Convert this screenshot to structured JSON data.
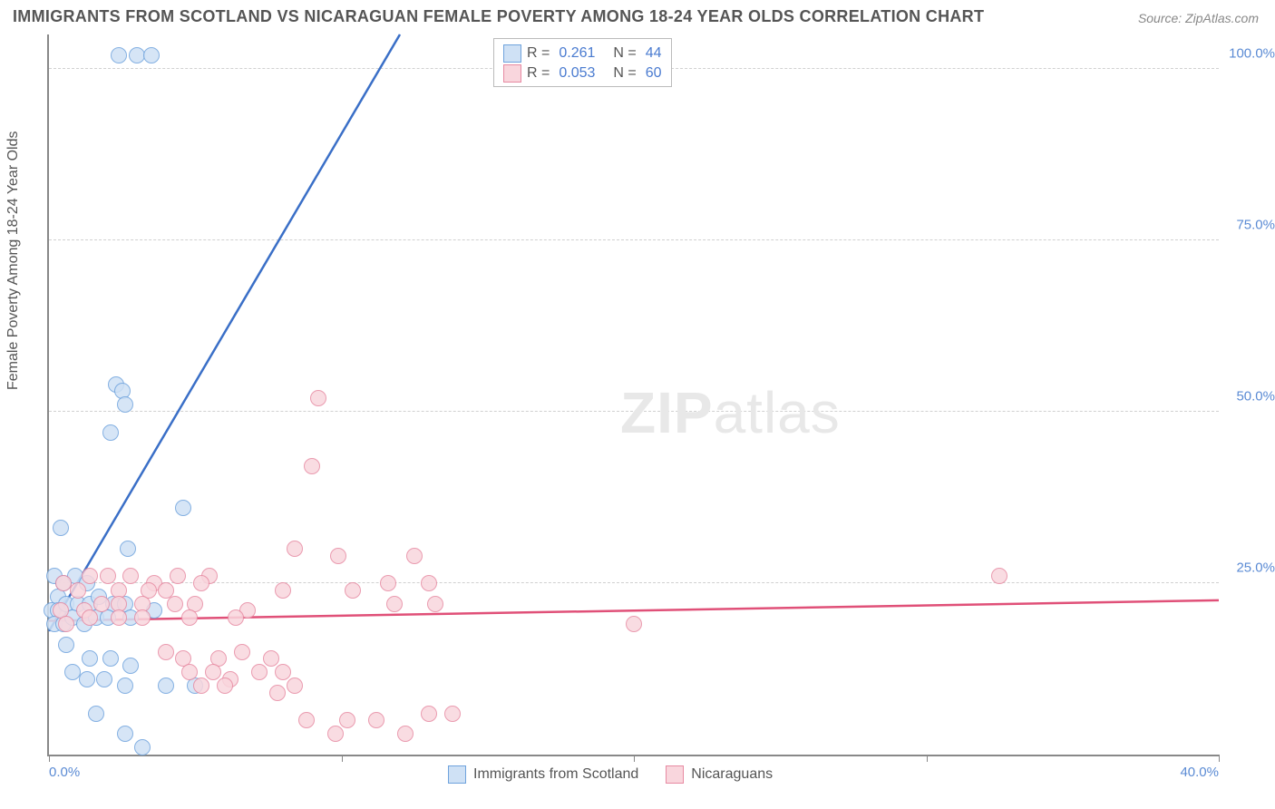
{
  "title": "IMMIGRANTS FROM SCOTLAND VS NICARAGUAN FEMALE POVERTY AMONG 18-24 YEAR OLDS CORRELATION CHART",
  "source_label": "Source: ",
  "source_name": "ZipAtlas.com",
  "watermark_bold": "ZIP",
  "watermark_rest": "atlas",
  "chart": {
    "type": "scatter",
    "ylabel": "Female Poverty Among 18-24 Year Olds",
    "xlim": [
      0,
      40
    ],
    "ylim": [
      0,
      105
    ],
    "x_ticks": [
      0,
      10,
      20,
      30,
      40
    ],
    "x_tick_labels": [
      "0.0%",
      "",
      "",
      "",
      "40.0%"
    ],
    "y_gridlines": [
      25,
      50,
      75,
      100
    ],
    "y_tick_labels": [
      "25.0%",
      "50.0%",
      "75.0%",
      "100.0%"
    ],
    "grid_color": "#d0d0d0",
    "axis_color": "#888888",
    "background_color": "#ffffff",
    "marker_radius": 8,
    "marker_stroke_width": 1.5,
    "series": [
      {
        "name": "Immigrants from Scotland",
        "fill": "#cfe1f5",
        "stroke": "#6fa3dd",
        "r_value": "0.261",
        "n_value": "44",
        "trend": {
          "x1": 0,
          "y1": 18,
          "x2": 12,
          "y2": 105,
          "color": "#3a6fc7",
          "width": 2.5,
          "dash_extend": true
        },
        "points": [
          [
            2.4,
            102
          ],
          [
            3.0,
            102
          ],
          [
            3.5,
            102
          ],
          [
            2.3,
            54
          ],
          [
            2.5,
            53
          ],
          [
            2.6,
            51
          ],
          [
            2.1,
            47
          ],
          [
            4.6,
            36
          ],
          [
            0.4,
            33
          ],
          [
            2.7,
            30
          ],
          [
            0.2,
            26
          ],
          [
            0.5,
            25
          ],
          [
            0.9,
            26
          ],
          [
            1.3,
            25
          ],
          [
            0.3,
            23
          ],
          [
            0.1,
            21
          ],
          [
            0.3,
            21
          ],
          [
            0.6,
            22
          ],
          [
            1.0,
            22
          ],
          [
            1.4,
            22
          ],
          [
            1.7,
            23
          ],
          [
            2.2,
            22
          ],
          [
            2.6,
            22
          ],
          [
            0.2,
            19
          ],
          [
            0.5,
            19
          ],
          [
            0.8,
            20
          ],
          [
            1.2,
            19
          ],
          [
            1.6,
            20
          ],
          [
            2.0,
            20
          ],
          [
            2.8,
            20
          ],
          [
            3.6,
            21
          ],
          [
            0.6,
            16
          ],
          [
            1.4,
            14
          ],
          [
            2.1,
            14
          ],
          [
            2.8,
            13
          ],
          [
            0.8,
            12
          ],
          [
            1.3,
            11
          ],
          [
            1.9,
            11
          ],
          [
            2.6,
            10
          ],
          [
            4.0,
            10
          ],
          [
            5.0,
            10
          ],
          [
            1.6,
            6
          ],
          [
            2.6,
            3
          ],
          [
            3.2,
            1
          ]
        ]
      },
      {
        "name": "Nicaraguans",
        "fill": "#f9d6dd",
        "stroke": "#e78aa2",
        "r_value": "0.053",
        "n_value": "60",
        "trend": {
          "x1": 0,
          "y1": 19.5,
          "x2": 40,
          "y2": 22.5,
          "color": "#e05078",
          "width": 2.5,
          "dash_extend": false
        },
        "points": [
          [
            9.2,
            52
          ],
          [
            9.0,
            42
          ],
          [
            8.4,
            30
          ],
          [
            9.9,
            29
          ],
          [
            12.5,
            29
          ],
          [
            0.5,
            25
          ],
          [
            1.4,
            26
          ],
          [
            2.0,
            26
          ],
          [
            2.8,
            26
          ],
          [
            3.6,
            25
          ],
          [
            4.4,
            26
          ],
          [
            5.5,
            26
          ],
          [
            1.0,
            24
          ],
          [
            2.4,
            24
          ],
          [
            3.4,
            24
          ],
          [
            4.0,
            24
          ],
          [
            5.2,
            25
          ],
          [
            8.0,
            24
          ],
          [
            10.4,
            24
          ],
          [
            11.6,
            25
          ],
          [
            13.0,
            25
          ],
          [
            32.5,
            26
          ],
          [
            0.4,
            21
          ],
          [
            1.2,
            21
          ],
          [
            1.8,
            22
          ],
          [
            2.4,
            22
          ],
          [
            3.2,
            22
          ],
          [
            4.3,
            22
          ],
          [
            5.0,
            22
          ],
          [
            6.8,
            21
          ],
          [
            11.8,
            22
          ],
          [
            13.2,
            22
          ],
          [
            0.6,
            19
          ],
          [
            1.4,
            20
          ],
          [
            2.4,
            20
          ],
          [
            3.2,
            20
          ],
          [
            4.8,
            20
          ],
          [
            6.4,
            20
          ],
          [
            20.0,
            19
          ],
          [
            4.0,
            15
          ],
          [
            4.6,
            14
          ],
          [
            5.8,
            14
          ],
          [
            6.6,
            15
          ],
          [
            7.6,
            14
          ],
          [
            4.8,
            12
          ],
          [
            5.6,
            12
          ],
          [
            6.2,
            11
          ],
          [
            7.2,
            12
          ],
          [
            8.0,
            12
          ],
          [
            5.2,
            10
          ],
          [
            6.0,
            10
          ],
          [
            7.8,
            9
          ],
          [
            8.4,
            10
          ],
          [
            8.8,
            5
          ],
          [
            10.2,
            5
          ],
          [
            11.2,
            5
          ],
          [
            13.0,
            6
          ],
          [
            13.8,
            6
          ],
          [
            9.8,
            3
          ],
          [
            12.2,
            3
          ]
        ]
      }
    ],
    "legend_bottom": [
      {
        "label": "Immigrants from Scotland",
        "fill": "#cfe1f5",
        "stroke": "#6fa3dd"
      },
      {
        "label": "Nicaraguans",
        "fill": "#f9d6dd",
        "stroke": "#e78aa2"
      }
    ]
  }
}
